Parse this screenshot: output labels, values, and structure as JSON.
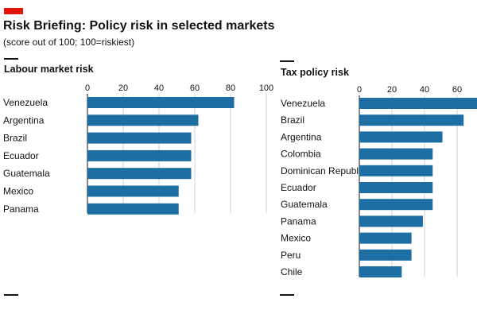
{
  "header": {
    "title": "Risk Briefing: Policy risk in selected markets",
    "subtitle": "(score out of 100; 100=riskiest)",
    "accent_color": "#e3120b"
  },
  "colors": {
    "bar": "#1d6fa3",
    "grid": "#d0d0d0"
  },
  "chart_data": [
    {
      "type": "bar",
      "orientation": "horizontal",
      "title": "Labour market risk",
      "categories": [
        "Venezuela",
        "Argentina",
        "Brazil",
        "Ecuador",
        "Guatemala",
        "Mexico",
        "Panama"
      ],
      "values": [
        82,
        62,
        58,
        58,
        58,
        51,
        51
      ],
      "xlim": [
        0,
        100
      ],
      "ticks": [
        0,
        20,
        40,
        60,
        80,
        100
      ],
      "grid": true
    },
    {
      "type": "bar",
      "orientation": "horizontal",
      "title": "Tax policy risk",
      "categories": [
        "Venezuela",
        "Brazil",
        "Argentina",
        "Colombia",
        "Dominican Republic",
        "Ecuador",
        "Guatemala",
        "Panama",
        "Mexico",
        "Peru",
        "Chile"
      ],
      "values": [
        75,
        64,
        51,
        45,
        45,
        45,
        45,
        39,
        32,
        32,
        26
      ],
      "xlim": [
        0,
        100
      ],
      "ticks": [
        0,
        20,
        40,
        60
      ],
      "grid": true
    }
  ]
}
